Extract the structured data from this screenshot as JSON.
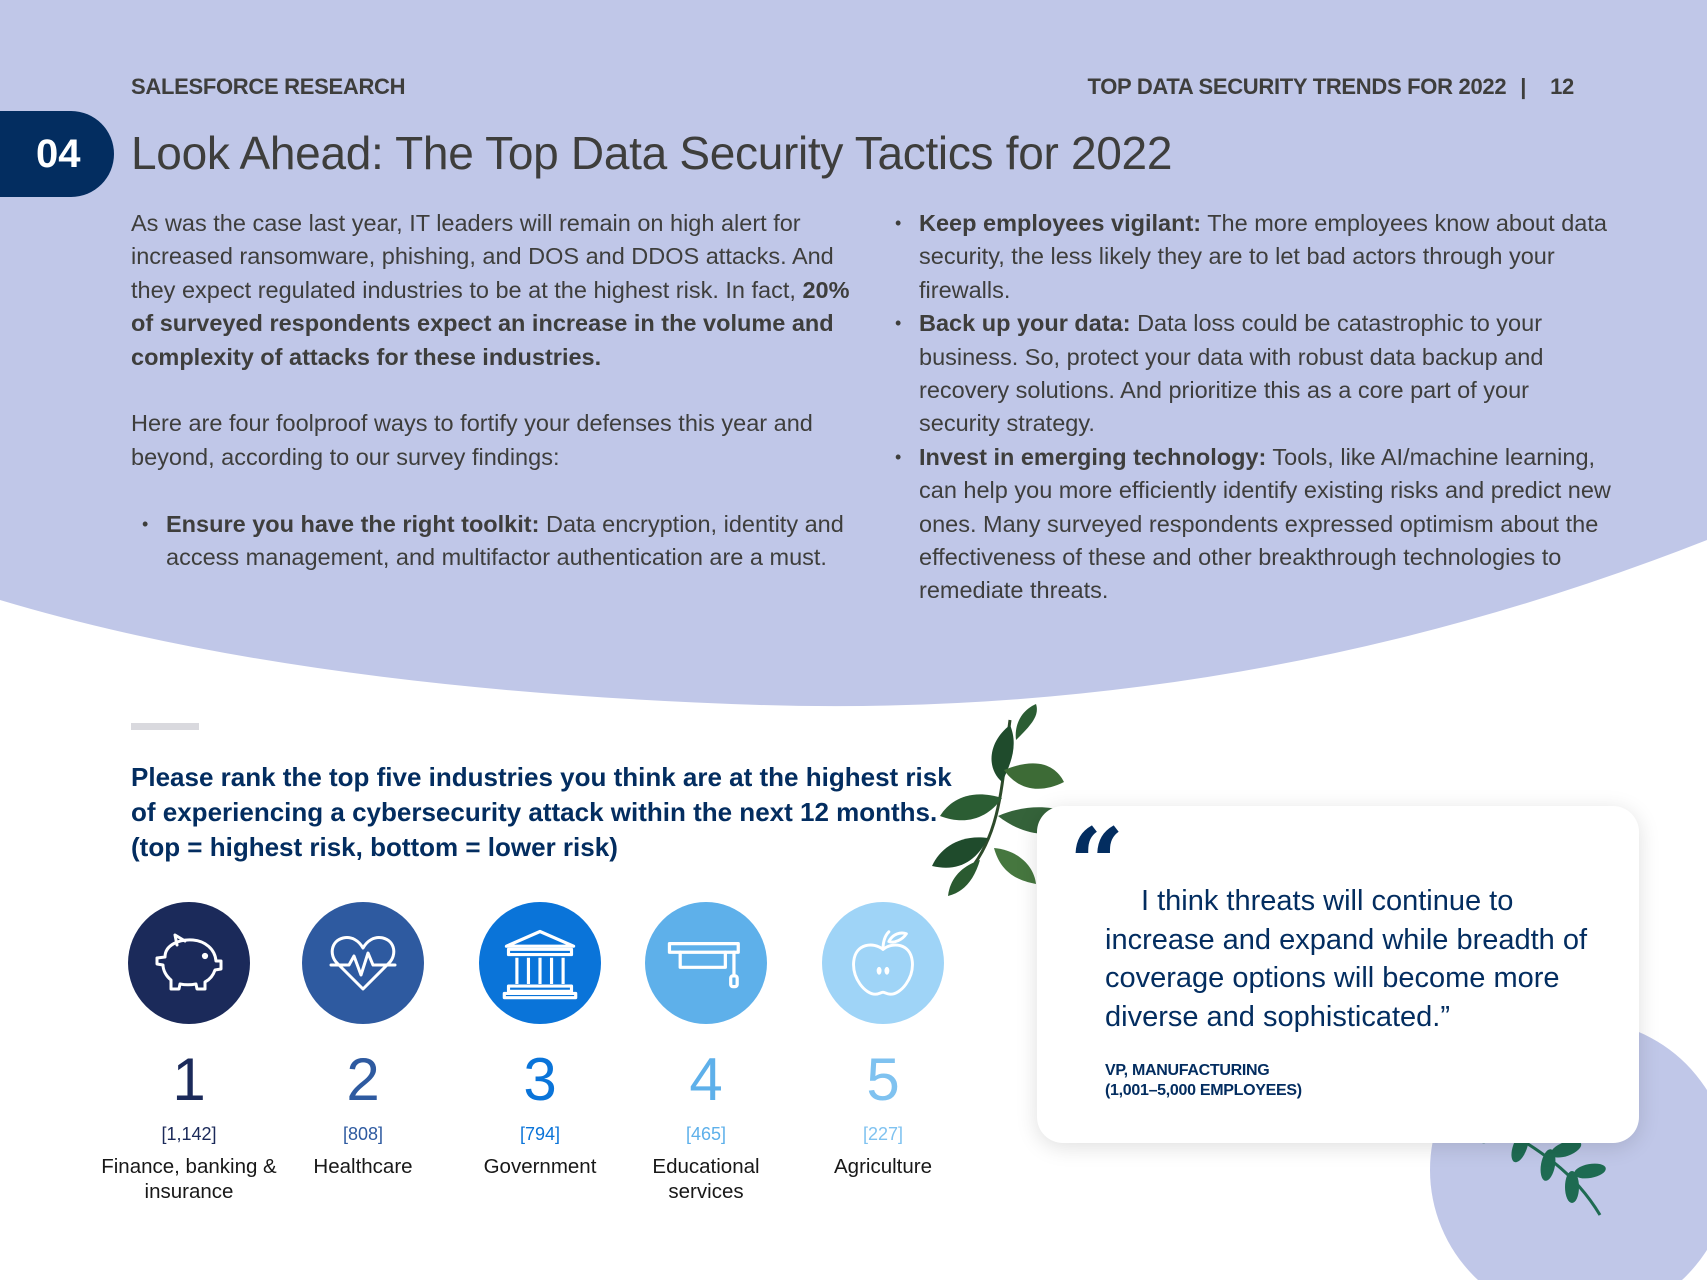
{
  "header": {
    "brand": "SALESFORCE RESEARCH",
    "report_title": "TOP DATA SECURITY TRENDS FOR 2022",
    "separator": "|",
    "page_number": "12"
  },
  "section": {
    "number": "04",
    "title": "Look Ahead: The Top Data Security Tactics for 2022"
  },
  "intro": {
    "paragraph1_lead": "As was the case last year, IT leaders will remain on high alert for increased ransomware, phishing, and DOS and DDOS attacks. And they expect regulated industries to be at the highest risk. In fact, ",
    "paragraph1_bold": "20% of surveyed respondents expect an increase in the volume and complexity of attacks for these industries.",
    "paragraph2": "Here are four foolproof ways to fortify your defenses this year and beyond, according to our survey findings:"
  },
  "tactics": [
    {
      "title": "Ensure you have the right toolkit:",
      "text": " Data encryption, identity and access management, and multifactor authentication are a must."
    },
    {
      "title": "Keep employees vigilant:",
      "text": " The more employees know about data security, the less likely they are to let bad actors through your firewalls."
    },
    {
      "title": "Back up your data:",
      "text": " Data loss could be catastrophic to your business. So, protect your data with robust data backup and recovery solutions. And prioritize this as a core part of your security strategy."
    },
    {
      "title": "Invest in emerging technology:",
      "text": " Tools, like AI/machine learning, can help you more efficiently identify existing risks and predict new ones. Many surveyed respondents expressed optimism about the effectiveness of these and other breakthrough technologies to remediate threats."
    }
  ],
  "bullet_glyph": "•",
  "survey": {
    "question": "Please rank the top five industries you think are at the highest risk of experiencing a cybersecurity attack within the next 12 months. (top = highest risk, bottom = lower risk)"
  },
  "rankings": [
    {
      "rank": "1",
      "count": "[1,142]",
      "label": "Finance, banking & insurance",
      "icon": "piggy-bank-icon",
      "circle_color": "#1b2a5a",
      "text_color": "#1b2a5a"
    },
    {
      "rank": "2",
      "count": "[808]",
      "label": "Healthcare",
      "icon": "heart-pulse-icon",
      "circle_color": "#2e5aa0",
      "text_color": "#2e5aa0"
    },
    {
      "rank": "3",
      "count": "[794]",
      "label": "Government",
      "icon": "government-building-icon",
      "circle_color": "#0a74d9",
      "text_color": "#0a74d9"
    },
    {
      "rank": "4",
      "count": "[465]",
      "label": "Educational services",
      "icon": "graduation-cap-icon",
      "circle_color": "#5eb0ea",
      "text_color": "#5eb0ea"
    },
    {
      "rank": "5",
      "count": "[227]",
      "label": "Agriculture",
      "icon": "apple-icon",
      "circle_color": "#9fd4f7",
      "text_color": "#7fc2f0"
    }
  ],
  "quote": {
    "mark": "“",
    "text": "I think threats will continue to increase and expand while breadth of coverage options will become more diverse and sophisticated.”",
    "attribution_role": "VP, MANUFACTURING",
    "attribution_company": "(1,001–5,000 EMPLOYEES)"
  },
  "colors": {
    "band": "#c0c7e8",
    "navy": "#032d60",
    "text": "#3e3e3c",
    "leaf_dark": "#1f4b2c",
    "leaf_mid": "#2f6a3b",
    "leaf_teal": "#1e6b52"
  }
}
